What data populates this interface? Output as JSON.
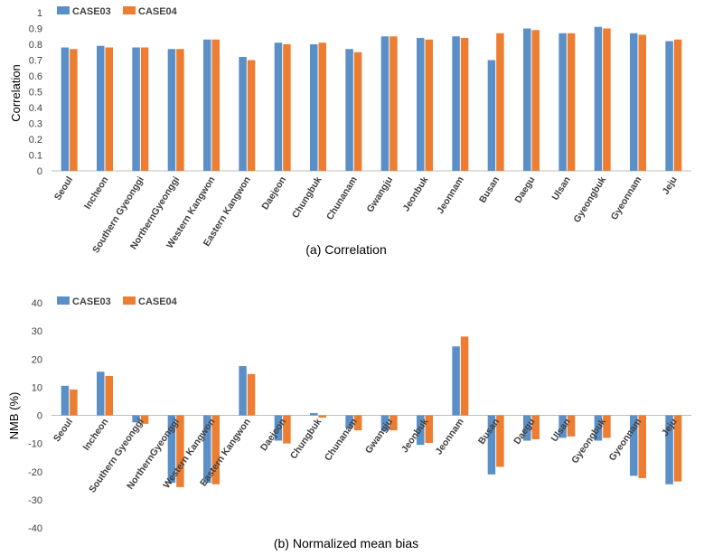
{
  "chart_data": [
    {
      "type": "bar",
      "caption": "(a) Correlation",
      "ylabel": "Correlation",
      "ylim": [
        0,
        1
      ],
      "yticks": [
        "0",
        "0.1",
        "0.2",
        "0.3",
        "0.4",
        "0.5",
        "0.6",
        "0.7",
        "0.8",
        "0.9",
        "1"
      ],
      "legend_position": "top-left",
      "categories": [
        "Seoul",
        "Incheon",
        "Southern Gyeonggi",
        "NorthernGyeonggi",
        "Western Kangwon",
        "Eastern Kangwon",
        "Daejeon",
        "Chungbuk",
        "Chunanam",
        "Gwangju",
        "Jeonbuk",
        "Jeonnam",
        "Busan",
        "Daegu",
        "Ulsan",
        "Gyeongbuk",
        "Gyeonnam",
        "Jeju"
      ],
      "series": [
        {
          "name": "CASE03",
          "color": "#5b8fc7",
          "values": [
            0.78,
            0.79,
            0.78,
            0.77,
            0.83,
            0.72,
            0.81,
            0.8,
            0.77,
            0.85,
            0.84,
            0.85,
            0.7,
            0.9,
            0.87,
            0.91,
            0.87,
            0.82
          ]
        },
        {
          "name": "CASE04",
          "color": "#ed7d31",
          "values": [
            0.77,
            0.78,
            0.78,
            0.77,
            0.83,
            0.7,
            0.8,
            0.81,
            0.75,
            0.85,
            0.83,
            0.84,
            0.87,
            0.89,
            0.87,
            0.9,
            0.86,
            0.83
          ]
        }
      ]
    },
    {
      "type": "bar",
      "caption": "(b) Normalized mean bias",
      "ylabel": "NMB (%)",
      "ylim": [
        -40,
        40
      ],
      "yticks": [
        "-40",
        "-30",
        "-20",
        "-10",
        "0",
        "10",
        "20",
        "30",
        "40"
      ],
      "legend_position": "top-left",
      "categories": [
        "Seoul",
        "Incheon",
        "Southern Gyeonggi",
        "NorthernGyeonggi",
        "Western Kangwon",
        "Eastern Kangwon",
        "Daejeon",
        "Chungbuk",
        "Chunanam",
        "Gwangju",
        "Jeonbuk",
        "Jeonnam",
        "Busan",
        "Daegu",
        "Ulsan",
        "Gyeongbuk",
        "Gyeonnam",
        "Jeju"
      ],
      "series": [
        {
          "name": "CASE03",
          "color": "#5b8fc7",
          "values": [
            10.5,
            15.5,
            -2.5,
            -24,
            -24,
            17.5,
            -9,
            0.8,
            -4.5,
            -5.5,
            -10.5,
            24.5,
            -21,
            -9,
            -8,
            -9,
            -21.5,
            -24.5
          ]
        },
        {
          "name": "CASE04",
          "color": "#ed7d31",
          "values": [
            9.2,
            14,
            -3,
            -25.5,
            -24.5,
            14.7,
            -10,
            -0.8,
            -5.3,
            -5.3,
            -9.8,
            28,
            -18.3,
            -8.5,
            -7.5,
            -8,
            -22.3,
            -23.5
          ]
        }
      ]
    }
  ]
}
